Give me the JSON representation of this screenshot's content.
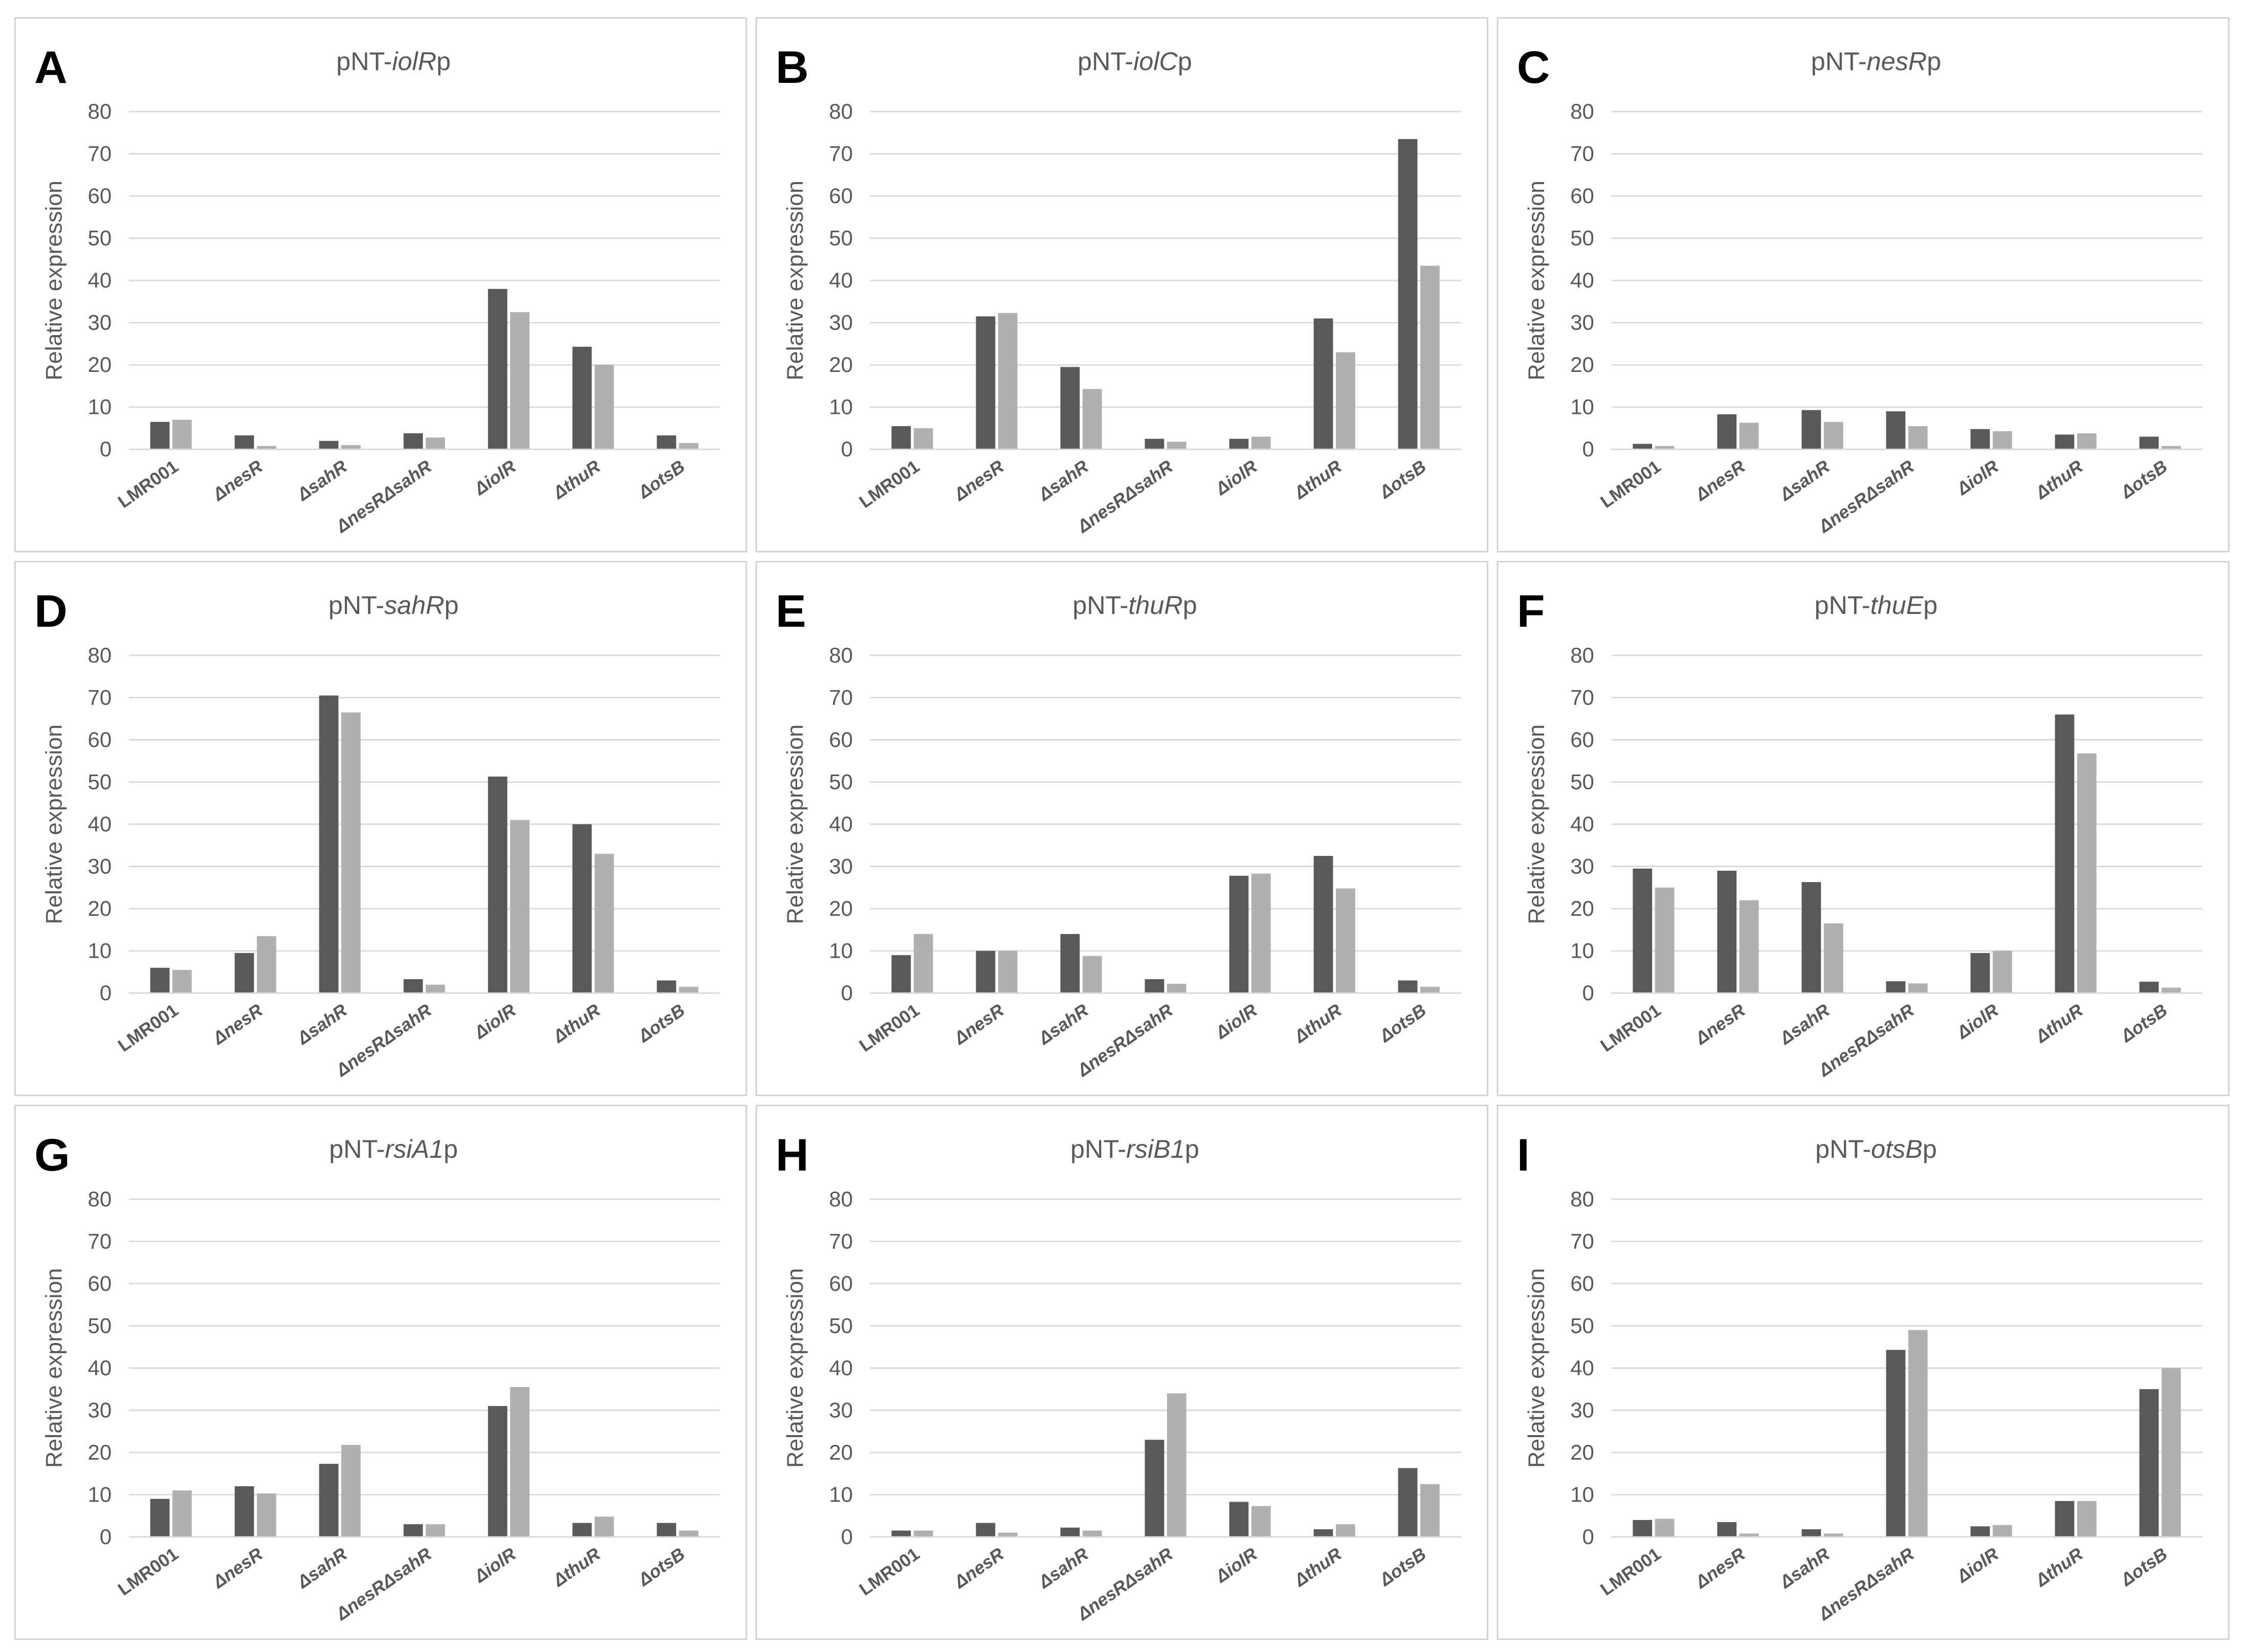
{
  "chart_data": [
    {
      "type": "bar",
      "panel": "A",
      "title": [
        "pNT-",
        "iolR",
        "p"
      ],
      "ylabel": "Relative expression",
      "categories": [
        "LMR001",
        "ΔnesR",
        "ΔsahR",
        "ΔnesRΔsahR",
        "ΔiolR",
        "ΔthuR",
        "ΔotsB"
      ],
      "series": [
        {
          "color": "#595959",
          "values": [
            6.5,
            3.3,
            2,
            3.8,
            38,
            24.3,
            3.3
          ]
        },
        {
          "color": "#b0b0b0",
          "values": [
            7,
            0.8,
            1,
            2.8,
            32.5,
            20,
            1.5
          ]
        }
      ],
      "ylim": [
        0,
        80
      ],
      "yticks": [
        0,
        10,
        20,
        30,
        40,
        50,
        60,
        70,
        80
      ],
      "grid": true
    },
    {
      "type": "bar",
      "panel": "B",
      "title": [
        "pNT-",
        "iolC",
        "p"
      ],
      "ylabel": "Relative expression",
      "categories": [
        "LMR001",
        "ΔnesR",
        "ΔsahR",
        "ΔnesRΔsahR",
        "ΔiolR",
        "ΔthuR",
        "ΔotsB"
      ],
      "series": [
        {
          "color": "#595959",
          "values": [
            5.5,
            31.5,
            19.5,
            2.5,
            2.5,
            31,
            73.5
          ]
        },
        {
          "color": "#b0b0b0",
          "values": [
            5,
            32.3,
            14.3,
            1.8,
            3,
            23,
            43.5
          ]
        }
      ],
      "ylim": [
        0,
        80
      ],
      "yticks": [
        0,
        10,
        20,
        30,
        40,
        50,
        60,
        70,
        80
      ],
      "grid": true
    },
    {
      "type": "bar",
      "panel": "C",
      "title": [
        "pNT-",
        "nesR",
        "p"
      ],
      "ylabel": "Relative expression",
      "categories": [
        "LMR001",
        "ΔnesR",
        "ΔsahR",
        "ΔnesRΔsahR",
        "ΔiolR",
        "ΔthuR",
        "ΔotsB"
      ],
      "series": [
        {
          "color": "#595959",
          "values": [
            1.3,
            8.3,
            9.3,
            9,
            4.8,
            3.5,
            3
          ]
        },
        {
          "color": "#b0b0b0",
          "values": [
            0.8,
            6.3,
            6.5,
            5.5,
            4.3,
            3.8,
            0.8
          ]
        }
      ],
      "ylim": [
        0,
        80
      ],
      "yticks": [
        0,
        10,
        20,
        30,
        40,
        50,
        60,
        70,
        80
      ],
      "grid": true
    },
    {
      "type": "bar",
      "panel": "D",
      "title": [
        "pNT-",
        "sahR",
        "p"
      ],
      "ylabel": "Relative expression",
      "categories": [
        "LMR001",
        "ΔnesR",
        "ΔsahR",
        "ΔnesRΔsahR",
        "ΔiolR",
        "ΔthuR",
        "ΔotsB"
      ],
      "series": [
        {
          "color": "#595959",
          "values": [
            6,
            9.5,
            70.5,
            3.3,
            51.3,
            40,
            3
          ]
        },
        {
          "color": "#b0b0b0",
          "values": [
            5.5,
            13.5,
            66.5,
            2,
            41,
            33,
            1.5
          ]
        }
      ],
      "ylim": [
        0,
        80
      ],
      "yticks": [
        0,
        10,
        20,
        30,
        40,
        50,
        60,
        70,
        80
      ],
      "grid": true
    },
    {
      "type": "bar",
      "panel": "E",
      "title": [
        "pNT-",
        "thuR",
        "p"
      ],
      "ylabel": "Relative expression",
      "categories": [
        "LMR001",
        "ΔnesR",
        "ΔsahR",
        "ΔnesRΔsahR",
        "ΔiolR",
        "ΔthuR",
        "ΔotsB"
      ],
      "series": [
        {
          "color": "#595959",
          "values": [
            9,
            10,
            14,
            3.3,
            27.8,
            32.5,
            3
          ]
        },
        {
          "color": "#b0b0b0",
          "values": [
            14,
            10,
            8.8,
            2.2,
            28.3,
            24.8,
            1.5
          ]
        }
      ],
      "ylim": [
        0,
        80
      ],
      "yticks": [
        0,
        10,
        20,
        30,
        40,
        50,
        60,
        70,
        80
      ],
      "grid": true
    },
    {
      "type": "bar",
      "panel": "F",
      "title": [
        "pNT-",
        "thuE",
        "p"
      ],
      "ylabel": "Relative expression",
      "categories": [
        "LMR001",
        "ΔnesR",
        "ΔsahR",
        "ΔnesRΔsahR",
        "ΔiolR",
        "ΔthuR",
        "ΔotsB"
      ],
      "series": [
        {
          "color": "#595959",
          "values": [
            29.5,
            29,
            26.3,
            2.8,
            9.5,
            66,
            2.7
          ]
        },
        {
          "color": "#b0b0b0",
          "values": [
            25,
            22,
            16.5,
            2.3,
            10,
            56.8,
            1.3
          ]
        }
      ],
      "ylim": [
        0,
        80
      ],
      "yticks": [
        0,
        10,
        20,
        30,
        40,
        50,
        60,
        70,
        80
      ],
      "grid": true
    },
    {
      "type": "bar",
      "panel": "G",
      "title": [
        "pNT-",
        "rsiA1",
        "p"
      ],
      "ylabel": "Relative expression",
      "categories": [
        "LMR001",
        "ΔnesR",
        "ΔsahR",
        "ΔnesRΔsahR",
        "ΔiolR",
        "ΔthuR",
        "ΔotsB"
      ],
      "series": [
        {
          "color": "#595959",
          "values": [
            9,
            12,
            17.3,
            3,
            31,
            3.3,
            3.3
          ]
        },
        {
          "color": "#b0b0b0",
          "values": [
            11,
            10.3,
            21.8,
            3,
            35.5,
            4.8,
            1.5
          ]
        }
      ],
      "ylim": [
        0,
        80
      ],
      "yticks": [
        0,
        10,
        20,
        30,
        40,
        50,
        60,
        70,
        80
      ],
      "grid": true
    },
    {
      "type": "bar",
      "panel": "H",
      "title": [
        "pNT-",
        "rsiB1",
        "p"
      ],
      "ylabel": "Relative expression",
      "categories": [
        "LMR001",
        "ΔnesR",
        "ΔsahR",
        "ΔnesRΔsahR",
        "ΔiolR",
        "ΔthuR",
        "ΔotsB"
      ],
      "series": [
        {
          "color": "#595959",
          "values": [
            1.5,
            3.3,
            2.2,
            23,
            8.3,
            1.8,
            16.3
          ]
        },
        {
          "color": "#b0b0b0",
          "values": [
            1.5,
            1,
            1.5,
            34,
            7.3,
            3,
            12.5
          ]
        }
      ],
      "ylim": [
        0,
        80
      ],
      "yticks": [
        0,
        10,
        20,
        30,
        40,
        50,
        60,
        70,
        80
      ],
      "grid": true
    },
    {
      "type": "bar",
      "panel": "I",
      "title": [
        "pNT-",
        "otsB",
        "p"
      ],
      "ylabel": "Relative expression",
      "categories": [
        "LMR001",
        "ΔnesR",
        "ΔsahR",
        "ΔnesRΔsahR",
        "ΔiolR",
        "ΔthuR",
        "ΔotsB"
      ],
      "series": [
        {
          "color": "#595959",
          "values": [
            4,
            3.5,
            1.8,
            44.3,
            2.5,
            8.5,
            35
          ]
        },
        {
          "color": "#b0b0b0",
          "values": [
            4.3,
            0.8,
            0.8,
            49,
            2.8,
            8.5,
            40
          ]
        }
      ],
      "ylim": [
        0,
        80
      ],
      "yticks": [
        0,
        10,
        20,
        30,
        40,
        50,
        60,
        70,
        80
      ],
      "grid": true
    }
  ]
}
